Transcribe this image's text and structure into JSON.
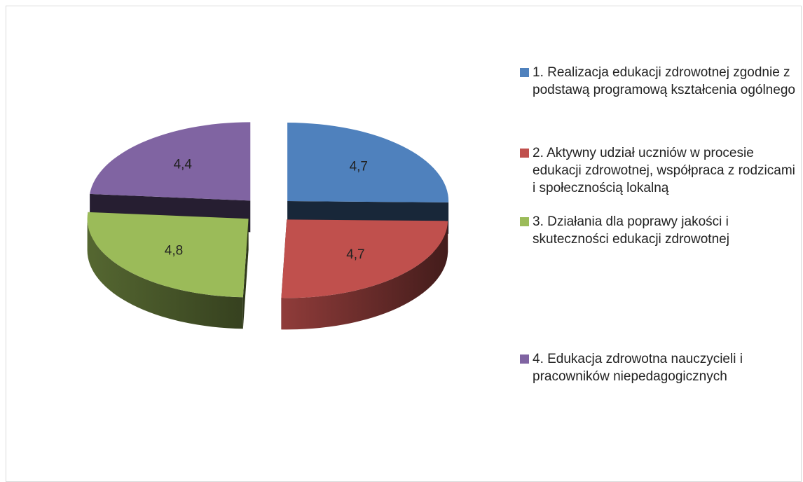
{
  "chart_data": {
    "type": "pie",
    "categories": [
      "1. Realizacja edukacji zdrowotnej zgodnie z podstawą programową kształcenia ogólnego",
      "2. Aktywny udział uczniów w procesie edukacji zdrowotnej, współpraca z rodzicami i społecznością lokalną",
      "3. Działania dla poprawy jakości i skuteczności edukacji zdrowotnej",
      "4. Edukacja zdrowotna nauczycieli i pracowników niepedagogicznych"
    ],
    "values": [
      4.7,
      4.7,
      4.8,
      4.4
    ],
    "value_labels": [
      "4,7",
      "4,7",
      "4,8",
      "4,4"
    ],
    "colors": [
      "#4f81bd",
      "#c0504d",
      "#9bbb59",
      "#8064a2"
    ],
    "legend": "right"
  }
}
